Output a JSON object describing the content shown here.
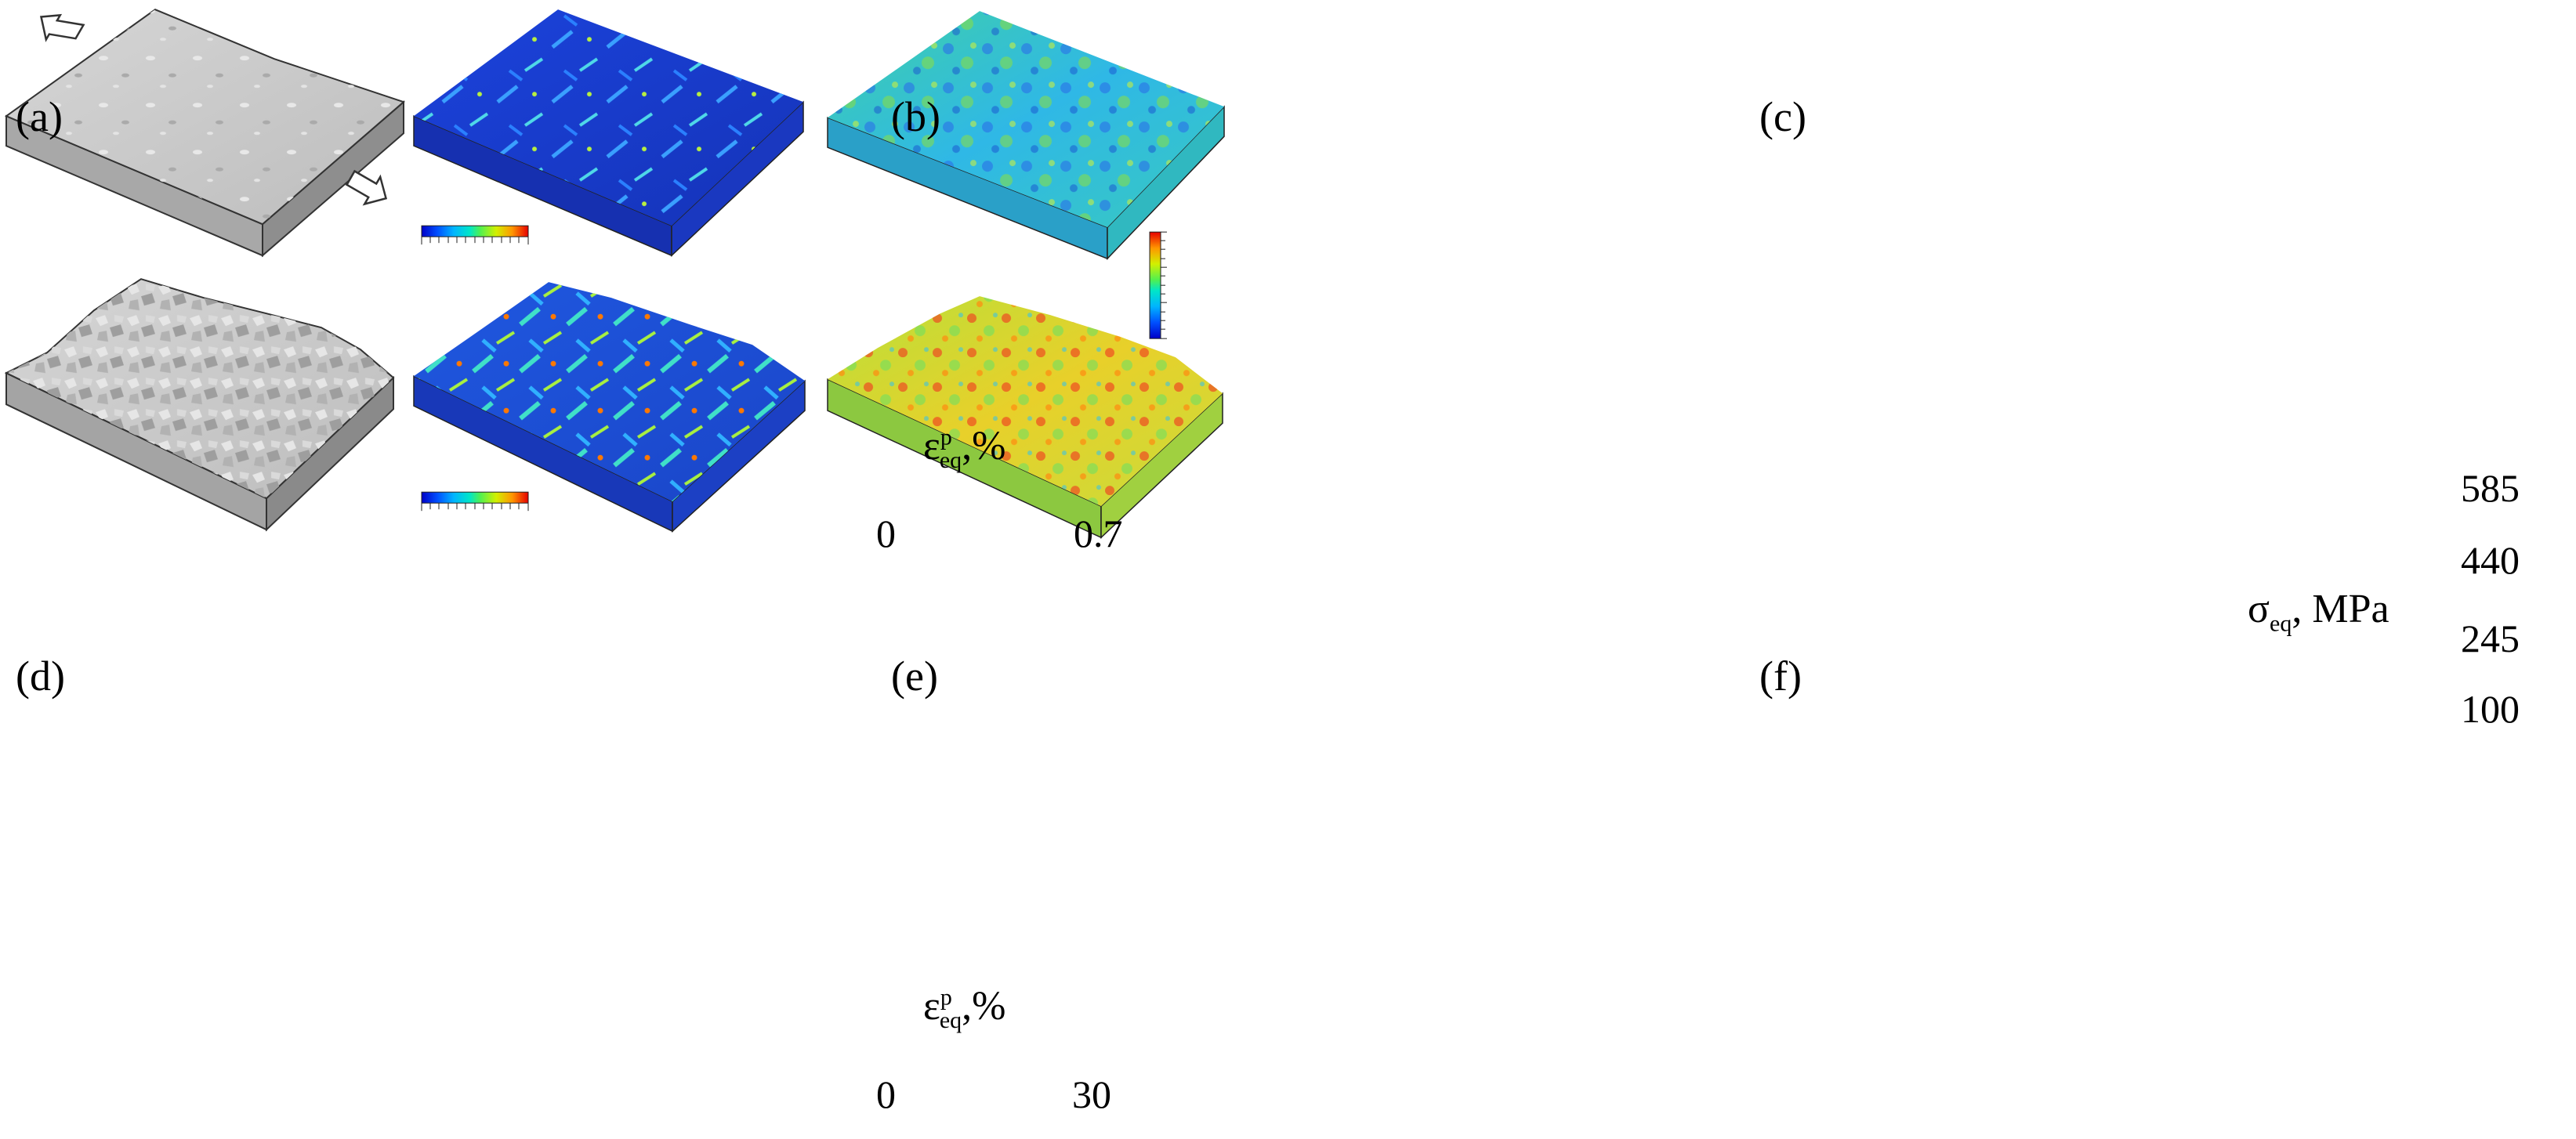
{
  "panels": [
    {
      "label": "(a)",
      "type": "surface",
      "roughness": "low"
    },
    {
      "label": "(b)",
      "type": "plastic-strain-map",
      "roughness": "low"
    },
    {
      "label": "(c)",
      "type": "stress-map",
      "roughness": "low"
    },
    {
      "label": "(d)",
      "type": "surface",
      "roughness": "high"
    },
    {
      "label": "(e)",
      "type": "plastic-strain-map",
      "roughness": "high"
    },
    {
      "label": "(f)",
      "type": "stress-map",
      "roughness": "high"
    }
  ],
  "strain_colorbar_top": {
    "symbol": "ε",
    "subscript": "eq",
    "superscript": "p",
    "unit": ",%",
    "min": "0",
    "max": "0.7"
  },
  "strain_colorbar_bottom": {
    "symbol": "ε",
    "subscript": "eq",
    "superscript": "p",
    "unit": ",%",
    "min": "0",
    "max": "30"
  },
  "stress_colorbar": {
    "symbol": "σ",
    "subscript": "eq",
    "unit": ", MPa",
    "ticks": [
      "585",
      "440",
      "245",
      "100"
    ]
  },
  "colors": {
    "gray_face": "#c9c9c9",
    "gray_side": "#9a9a9a",
    "blue_base": "#1a3fd6",
    "cyan_base": "#35c8d8",
    "outline": "#333333"
  }
}
